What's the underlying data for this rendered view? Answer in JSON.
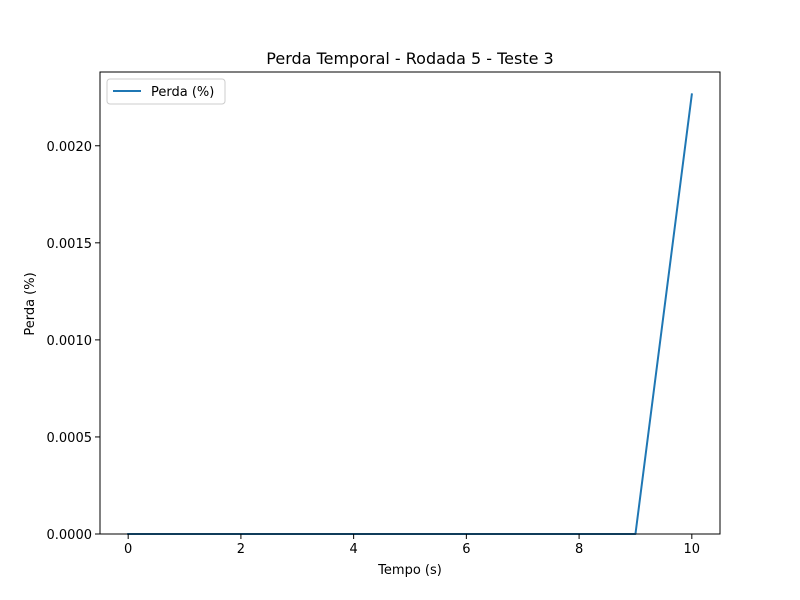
{
  "chart_data": {
    "type": "line",
    "title": "Perda Temporal - Rodada 5 - Teste 3",
    "xlabel": "Tempo (s)",
    "ylabel": "Perda (%)",
    "xlim": [
      -0.5,
      10.5
    ],
    "ylim": [
      0,
      0.00238
    ],
    "xticks": [
      0,
      2,
      4,
      6,
      8,
      10
    ],
    "xtick_labels": [
      "0",
      "2",
      "4",
      "6",
      "8",
      "10"
    ],
    "yticks": [
      0,
      0.0005,
      0.001,
      0.0015,
      0.002
    ],
    "ytick_labels": [
      "0.0000",
      "0.0005",
      "0.0010",
      "0.0015",
      "0.0020"
    ],
    "grid": false,
    "legend_position": "upper left",
    "series": [
      {
        "name": "Perda (%)",
        "color": "#1f77b4",
        "x": [
          0,
          1,
          2,
          3,
          4,
          5,
          6,
          7,
          8,
          9,
          10
        ],
        "y": [
          0,
          0,
          0,
          0,
          0,
          0,
          0,
          0,
          0,
          0,
          0.002265
        ]
      }
    ]
  }
}
